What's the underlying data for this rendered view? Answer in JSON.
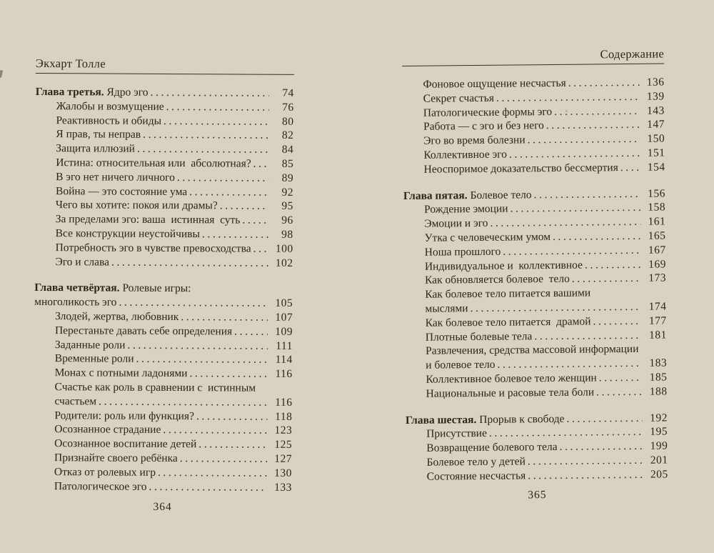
{
  "book": {
    "colors": {
      "paper": "#f8f5ec",
      "ink": "#2e241a"
    },
    "left_page": {
      "header": "Экхарт Толле",
      "folio": "364",
      "entries": [
        {
          "prefix": "Глава третья.",
          "text": "Ядро эго",
          "page": "74",
          "indent": 0,
          "dots": true
        },
        {
          "text": "Жалобы и возмущение",
          "page": "76",
          "indent": 1,
          "dots": true
        },
        {
          "text": "Реактивность и обиды",
          "page": "80",
          "indent": 1,
          "dots": true
        },
        {
          "text": "Я прав, ты неправ",
          "page": "82",
          "indent": 1,
          "dots": true
        },
        {
          "text": "Защита иллюзий",
          "page": "84",
          "indent": 1,
          "dots": true
        },
        {
          "text": "Истина: относительная или  абсолютная?",
          "page": "85",
          "indent": 1,
          "dots": true
        },
        {
          "text": "В эго нет ничего личного",
          "page": "89",
          "indent": 1,
          "dots": true
        },
        {
          "text": "Война — это состояние ума",
          "page": "92",
          "indent": 1,
          "dots": true
        },
        {
          "text": "Чего вы хотите: покоя или драмы?",
          "page": "95",
          "indent": 1,
          "dots": true
        },
        {
          "text": "За пределами эго: ваша  истинная  суть",
          "page": "96",
          "indent": 1,
          "dots": true
        },
        {
          "text": "Все конструкции неустойчивы",
          "page": "98",
          "indent": 1,
          "dots": true
        },
        {
          "text": "Потребность эго в чувстве превосходства",
          "page": "100",
          "indent": 1,
          "dots": true
        },
        {
          "text": "Эго и слава",
          "page": "102",
          "indent": 1,
          "dots": true
        },
        {
          "type": "gap"
        },
        {
          "prefix": "Глава четвёртая.",
          "text": "Ролевые игры:",
          "page": "",
          "indent": 0,
          "dots": false
        },
        {
          "text": "многоликость эго",
          "page": "105",
          "indent": 0,
          "dots": true
        },
        {
          "text": "Злодей, жертва, любовник",
          "page": "107",
          "indent": 1,
          "dots": true
        },
        {
          "text": "Перестаньте давать себе определения",
          "page": "109",
          "indent": 1,
          "dots": true
        },
        {
          "text": "Заданные роли",
          "page": "111",
          "indent": 1,
          "dots": true
        },
        {
          "text": "Временные роли",
          "page": "114",
          "indent": 1,
          "dots": true
        },
        {
          "text": "Монах с потными ладонями",
          "page": "116",
          "indent": 1,
          "dots": true
        },
        {
          "text": "Счастье как роль в сравнении с  истинным",
          "page": "",
          "indent": 1,
          "dots": false
        },
        {
          "text": "счастьем",
          "page": "116",
          "indent": 1,
          "dots": true
        },
        {
          "text": "Родители: роль или функция?",
          "page": "118",
          "indent": 1,
          "dots": true
        },
        {
          "text": "Осознанное страдание",
          "page": "123",
          "indent": 1,
          "dots": true
        },
        {
          "text": "Осознанное воспитание детей",
          "page": "125",
          "indent": 1,
          "dots": true
        },
        {
          "text": "Признайте своего ребёнка",
          "page": "127",
          "indent": 1,
          "dots": true
        },
        {
          "text": "Отказ от ролевых игр",
          "page": "130",
          "indent": 1,
          "dots": true
        },
        {
          "text": "Патологическое эго",
          "page": "133",
          "indent": 1,
          "dots": true
        }
      ]
    },
    "right_page": {
      "header": "Содержание",
      "folio": "365",
      "entries": [
        {
          "text": "Фоновое ощущение несчастья",
          "page": "136",
          "indent": 1,
          "dots": true
        },
        {
          "text": "Секрет счастья",
          "page": "139",
          "indent": 1,
          "dots": true
        },
        {
          "text": "Патологические формы эго",
          "page": "143",
          "indent": 1,
          "dots": true
        },
        {
          "text": "Работа — с эго и без него",
          "page": "147",
          "indent": 1,
          "dots": true
        },
        {
          "text": "Эго во время болезни",
          "page": "150",
          "indent": 1,
          "dots": true
        },
        {
          "text": "Коллективное эго",
          "page": "151",
          "indent": 1,
          "dots": true
        },
        {
          "text": "Неоспоримое доказательство бессмертия",
          "page": "154",
          "indent": 1,
          "dots": true
        },
        {
          "type": "gap"
        },
        {
          "prefix": "Глава пятая.",
          "text": "Болевое тело",
          "page": "156",
          "indent": 0,
          "dots": true
        },
        {
          "text": "Рождение эмоции",
          "page": "158",
          "indent": 1,
          "dots": true
        },
        {
          "text": "Эмоции и эго",
          "page": "161",
          "indent": 1,
          "dots": true
        },
        {
          "text": "Утка с человеческим умом",
          "page": "165",
          "indent": 1,
          "dots": true
        },
        {
          "text": "Ноша прошлого",
          "page": "167",
          "indent": 1,
          "dots": true
        },
        {
          "text": "Индивидуальное и  коллективное",
          "page": "169",
          "indent": 1,
          "dots": true
        },
        {
          "text": "Как обновляется болевое  тело",
          "page": "173",
          "indent": 1,
          "dots": true
        },
        {
          "text": "Как болевое тело питается вашими",
          "page": "",
          "indent": 1,
          "dots": false
        },
        {
          "text": "мыслями",
          "page": "174",
          "indent": 1,
          "dots": true
        },
        {
          "text": "Как болевое тело питается  драмой",
          "page": "177",
          "indent": 1,
          "dots": true
        },
        {
          "text": "Плотные болевые тела",
          "page": "181",
          "indent": 1,
          "dots": true
        },
        {
          "text": "Развлечения, средства массовой информации",
          "page": "",
          "indent": 1,
          "dots": false
        },
        {
          "text": "и болевое тело",
          "page": "183",
          "indent": 1,
          "dots": true
        },
        {
          "text": "Коллективное болевое тело женщин",
          "page": "185",
          "indent": 1,
          "dots": true
        },
        {
          "text": "Национальные и расовые тела боли",
          "page": "188",
          "indent": 1,
          "dots": true
        },
        {
          "type": "gap"
        },
        {
          "prefix": "Глава шестая.",
          "text": "Прорыв к свободе",
          "page": "192",
          "indent": 0,
          "dots": true
        },
        {
          "text": "Присутствие",
          "page": "195",
          "indent": 1,
          "dots": true
        },
        {
          "text": "Возвращение болевого тела",
          "page": "199",
          "indent": 1,
          "dots": true
        },
        {
          "text": "Болевое тело у детей",
          "page": "201",
          "indent": 1,
          "dots": true
        },
        {
          "text": "Состояние несчастья",
          "page": "205",
          "indent": 1,
          "dots": true
        }
      ]
    }
  }
}
